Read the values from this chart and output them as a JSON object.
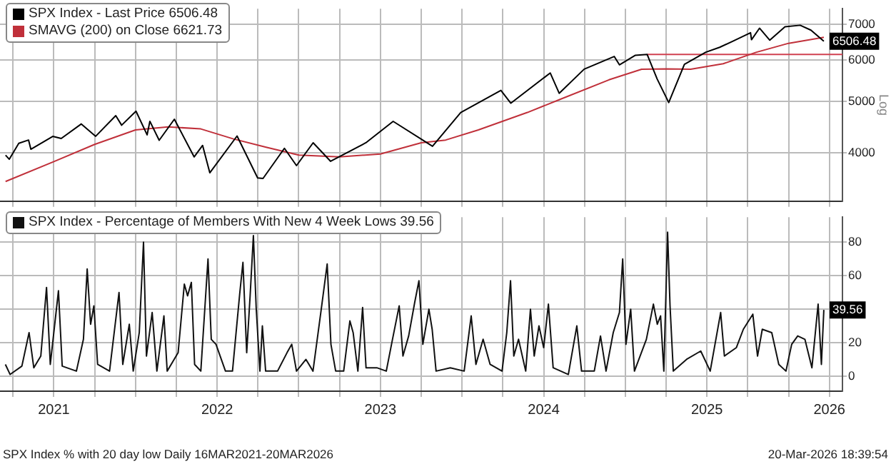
{
  "chart_data": [
    {
      "type": "line",
      "legend": "top left",
      "grid": true,
      "log": "y",
      "marker": "none",
      "line_style": "solid",
      "tick_labels": "y",
      "ylabel": "Log",
      "xlim": [
        2021.17,
        2026.33
      ],
      "xticks": [
        {
          "value": 2021.25,
          "label": null
        },
        {
          "value": 2021.5,
          "label": null
        },
        {
          "value": 2021.75,
          "label": null
        },
        {
          "value": 2022,
          "label": null
        },
        {
          "value": 2022.25,
          "label": null
        },
        {
          "value": 2022.5,
          "label": null
        },
        {
          "value": 2022.75,
          "label": null
        },
        {
          "value": 2023,
          "label": null
        },
        {
          "value": 2023.25,
          "label": null
        },
        {
          "value": 2023.5,
          "label": null
        },
        {
          "value": 2023.75,
          "label": null
        },
        {
          "value": 2024,
          "label": null
        },
        {
          "value": 2024.25,
          "label": null
        },
        {
          "value": 2024.5,
          "label": null
        },
        {
          "value": 2024.75,
          "label": null
        },
        {
          "value": 2025,
          "label": null
        },
        {
          "value": 2025.25,
          "label": null
        },
        {
          "value": 2025.5,
          "label": null
        },
        {
          "value": 2025.75,
          "label": null
        },
        {
          "value": 2026,
          "label": null
        },
        {
          "value": 2026.25,
          "label": null
        }
      ],
      "ylim": [
        3240,
        7500
      ],
      "yticks": [
        4000,
        5000,
        6000,
        7000
      ],
      "annotations": [
        {
          "text": "6506.48",
          "x": 2026.216,
          "y": 6506.48
        }
      ],
      "series": [
        {
          "name": "SPX Index - Last Price 6506.48",
          "color": "#000000",
          "x": [
            2021.204,
            2021.227,
            2021.285,
            2021.345,
            2021.359,
            2021.493,
            2021.545,
            2021.668,
            2021.756,
            2021.879,
            2021.915,
            2022.003,
            2022.071,
            2022.088,
            2022.145,
            2022.238,
            2022.359,
            2022.411,
            2022.455,
            2022.622,
            2022.748,
            2022.781,
            2022.912,
            2022.986,
            2023.088,
            2023.195,
            2023.411,
            2023.578,
            2023.819,
            2023.992,
            2024.238,
            2024.299,
            2024.54,
            2024.595,
            2024.748,
            2024.932,
            2024.964,
            2025.06,
            2025.134,
            2025.195,
            2025.266,
            2025.362,
            2025.493,
            2025.578,
            2025.655,
            2025.767,
            2025.773,
            2025.822,
            2025.885,
            2025.978,
            2026.071,
            2026.137,
            2026.216
          ],
          "values": [
            3960,
            3890,
            4170,
            4230,
            4063,
            4298,
            4258,
            4537,
            4300,
            4705,
            4513,
            4797,
            4326,
            4590,
            4225,
            4632,
            3930,
            4132,
            3667,
            4305,
            3586,
            3577,
            4080,
            3783,
            4180,
            3855,
            4180,
            4589,
            4117,
            4770,
            5254,
            4967,
            5667,
            5186,
            5762,
            6090,
            5872,
            6119,
            6144,
            5521,
            4982,
            5886,
            6205,
            6339,
            6502,
            6753,
            6552,
            6890,
            6538,
            6932,
            6978,
            6830,
            6506.48
          ]
        },
        {
          "name": "SMAVG (200)  on Close 6621.73",
          "color": "#c0303a",
          "x": [
            2021.204,
            2021.5,
            2021.75,
            2022.0,
            2022.2,
            2022.4,
            2022.6,
            2022.8,
            2023.0,
            2023.25,
            2023.5,
            2023.75,
            2023.9,
            2024.1,
            2024.4,
            2024.6,
            2024.9,
            2025.1,
            2025.25,
            2025.4,
            2025.6,
            2025.8,
            2026.0,
            2026.216
          ],
          "values": [
            3530,
            3850,
            4150,
            4420,
            4480,
            4440,
            4250,
            4100,
            3960,
            3930,
            3980,
            4180,
            4230,
            4420,
            4770,
            5050,
            5500,
            5760,
            5770,
            5760,
            5900,
            6200,
            6450,
            6621.73
          ]
        },
        {
          "color": "#d04050",
          "x": [
            2025.134,
            2026.33
          ],
          "values": [
            6144,
            6144
          ]
        }
      ]
    },
    {
      "type": "line",
      "legend": "top left",
      "grid": true,
      "marker": "none",
      "line_style": "solid",
      "xlim": [
        2021.17,
        2026.33
      ],
      "xticks": [
        {
          "value": 2021.25,
          "label": null
        },
        {
          "value": 2021.5,
          "label": "2021"
        },
        {
          "value": 2021.75,
          "label": null
        },
        {
          "value": 2022,
          "label": null
        },
        {
          "value": 2022.25,
          "label": null
        },
        {
          "value": 2022.5,
          "label": "2022"
        },
        {
          "value": 2022.75,
          "label": null
        },
        {
          "value": 2023,
          "label": null
        },
        {
          "value": 2023.25,
          "label": null
        },
        {
          "value": 2023.5,
          "label": "2023"
        },
        {
          "value": 2023.75,
          "label": null
        },
        {
          "value": 2024,
          "label": null
        },
        {
          "value": 2024.25,
          "label": null
        },
        {
          "value": 2024.5,
          "label": "2024"
        },
        {
          "value": 2024.75,
          "label": null
        },
        {
          "value": 2025,
          "label": null
        },
        {
          "value": 2025.25,
          "label": null
        },
        {
          "value": 2025.5,
          "label": "2025"
        },
        {
          "value": 2025.75,
          "label": null
        },
        {
          "value": 2026,
          "label": null
        },
        {
          "value": 2026.25,
          "label": "2026"
        }
      ],
      "ylim": [
        -9,
        95
      ],
      "yticks": [
        0,
        20,
        {
          "value": 40,
          "label": null
        },
        60,
        80
      ],
      "annotations": [
        {
          "text": "39.56",
          "x": 2026.216,
          "y": 39.56
        },
        "SPX Index % with 20 day low Daily 16MAR2021-20MAR2026",
        "20-Mar-2026 18:39:54"
      ],
      "series": [
        {
          "name": "SPX Index - Percentage of Members With New 4 Week Lows 39.56",
          "color": "#111111",
          "x": [
            2021.203,
            2021.232,
            2021.304,
            2021.348,
            2021.377,
            2021.42,
            2021.455,
            2021.478,
            2021.528,
            2021.551,
            2021.638,
            2021.681,
            2021.704,
            2021.725,
            2021.745,
            2021.768,
            2021.841,
            2021.899,
            2021.922,
            2021.962,
            2021.986,
            2022.023,
            2022.049,
            2022.067,
            2022.102,
            2022.131,
            2022.174,
            2022.194,
            2022.261,
            2022.299,
            2022.319,
            2022.342,
            2022.362,
            2022.4,
            2022.444,
            2022.464,
            2022.493,
            2022.551,
            2022.594,
            2022.638,
            2022.658,
            2022.681,
            2022.702,
            2022.722,
            2022.739,
            2022.762,
            2022.777,
            2022.797,
            2022.87,
            2022.928,
            2022.957,
            2022.986,
            2023.044,
            2023.087,
            2023.139,
            2023.174,
            2023.197,
            2023.226,
            2023.275,
            2023.313,
            2023.333,
            2023.362,
            2023.391,
            2023.412,
            2023.478,
            2023.536,
            2023.574,
            2023.615,
            2023.638,
            2023.673,
            2023.71,
            2023.736,
            2023.76,
            2023.797,
            2023.817,
            2023.841,
            2023.928,
            2024.013,
            2024.056,
            2024.085,
            2024.129,
            2024.172,
            2024.245,
            2024.274,
            2024.297,
            2024.317,
            2024.346,
            2024.39,
            2024.419,
            2024.442,
            2024.471,
            2024.5,
            2024.529,
            2024.558,
            2024.651,
            2024.703,
            2024.732,
            2024.81,
            2024.848,
            2024.882,
            2024.926,
            2024.964,
            2024.984,
            2025.004,
            2025.033,
            2025.056,
            2025.129,
            2025.172,
            2025.196,
            2025.216,
            2025.236,
            2025.259,
            2025.274,
            2025.294,
            2025.375,
            2025.462,
            2025.52,
            2025.584,
            2025.607,
            2025.68,
            2025.723,
            2025.781,
            2025.81,
            2025.839,
            2025.897,
            2025.94,
            2025.984,
            2026.019,
            2026.056,
            2026.1,
            2026.143,
            2026.181,
            2026.201,
            2026.216
          ],
          "values": [
            7,
            1,
            6,
            26,
            5,
            12,
            53,
            7,
            51,
            6,
            3,
            22,
            64,
            31,
            42,
            7,
            3,
            50,
            7,
            31,
            3,
            26,
            80,
            12,
            38,
            3,
            36,
            3,
            14,
            55,
            48,
            56,
            7,
            3,
            70,
            22,
            19,
            3,
            3,
            49,
            68,
            14,
            48,
            84,
            41,
            3,
            30,
            3,
            3,
            14,
            19,
            3,
            10,
            3,
            41,
            67,
            19,
            3,
            3,
            33,
            26,
            3,
            41,
            5,
            5,
            3,
            22,
            42,
            12,
            24,
            44,
            57,
            19,
            40,
            28,
            3,
            5,
            3,
            36,
            7,
            22,
            7,
            3,
            26,
            57,
            12,
            22,
            3,
            40,
            12,
            30,
            17,
            43,
            5,
            1,
            30,
            3,
            3,
            24,
            3,
            26,
            38,
            70,
            19,
            40,
            3,
            22,
            43,
            31,
            36,
            3,
            86,
            42,
            3,
            10,
            15,
            3,
            38,
            12,
            17,
            28,
            37,
            12,
            28,
            26,
            7,
            3,
            19,
            24,
            22,
            5,
            43,
            7,
            39.56
          ]
        }
      ]
    }
  ]
}
